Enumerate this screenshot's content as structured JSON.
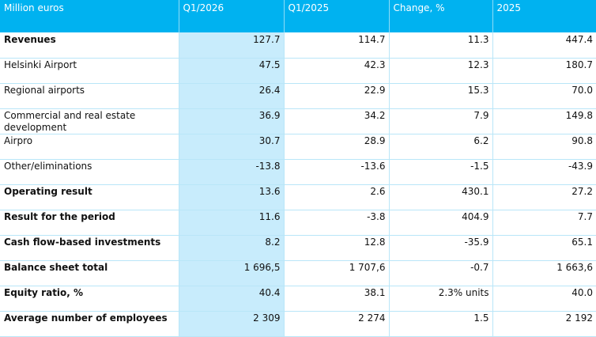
{
  "headers": [
    "Million euros",
    "Q1/2026",
    "Q1/2025",
    "Change, %",
    "2025"
  ],
  "rows": [
    {
      "label": "Revenues",
      "bold": true,
      "values": [
        "127.7",
        "114.7",
        "11.3",
        "447.4"
      ]
    },
    {
      "label": "Helsinki Airport",
      "bold": false,
      "values": [
        "47.5",
        "42.3",
        "12.3",
        "180.7"
      ]
    },
    {
      "label": "Regional airports",
      "bold": false,
      "values": [
        "26.4",
        "22.9",
        "15.3",
        "70.0"
      ]
    },
    {
      "label": "Commercial and real estate development",
      "bold": false,
      "values": [
        "36.9",
        "34.2",
        "7.9",
        "149.8"
      ]
    },
    {
      "label": "Airpro",
      "bold": false,
      "values": [
        "30.7",
        "28.9",
        "6.2",
        "90.8"
      ]
    },
    {
      "label": "Other/eliminations",
      "bold": false,
      "values": [
        "-13.8",
        "-13.6",
        "-1.5",
        "-43.9"
      ]
    },
    {
      "label": "Operating result",
      "bold": true,
      "values": [
        "13.6",
        "2.6",
        "430.1",
        "27.2"
      ]
    },
    {
      "label": "Result for the period",
      "bold": true,
      "values": [
        "11.6",
        "-3.8",
        "404.9",
        "7.7"
      ]
    },
    {
      "label": "Cash flow-based investments",
      "bold": true,
      "values": [
        "8.2",
        "12.8",
        "-35.9",
        "65.1"
      ]
    },
    {
      "label": "Balance sheet total",
      "bold": true,
      "values": [
        "1 696,5",
        "1 707,6",
        "-0.7",
        "1 663,6"
      ]
    },
    {
      "label": "Equity ratio, %",
      "bold": true,
      "values": [
        "40.4",
        "38.1",
        "2.3% units",
        "40.0"
      ]
    },
    {
      "label": "Average number of employees",
      "bold": true,
      "values": [
        "2 309",
        "2 274",
        "1.5",
        "2 192"
      ]
    }
  ],
  "colors": {
    "header_bg": "#00b2f0",
    "highlight_column_bg": "#c8ecfc",
    "grid_line": "#b9e6f8"
  }
}
